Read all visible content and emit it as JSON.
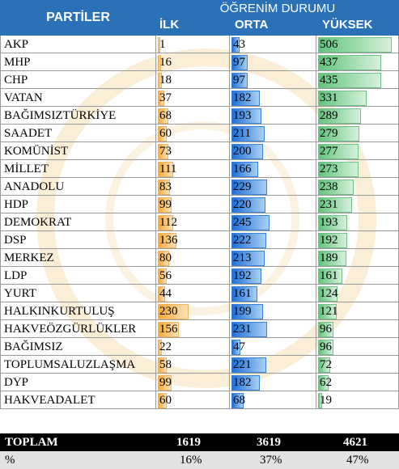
{
  "colors": {
    "header": "#2b71b8",
    "ilk_bar": "#f7a93a",
    "orta_bar": "#1e6fd8",
    "yuksek_bar": "#62c47a"
  },
  "header": {
    "partiler": "PARTİLER",
    "group": "ÖĞRENİM DURUMU",
    "col_ilk": "İLK",
    "col_orta": "ORTA",
    "col_yuksek": "YÜKSEK"
  },
  "chart_data": {
    "type": "table",
    "max_value": 560,
    "rows": [
      {
        "party": "AKP",
        "ilk": 1,
        "orta": 43,
        "yuksek": 506
      },
      {
        "party": "MHP",
        "ilk": 16,
        "orta": 97,
        "yuksek": 437
      },
      {
        "party": "CHP",
        "ilk": 18,
        "orta": 97,
        "yuksek": 435
      },
      {
        "party": "VATAN",
        "ilk": 37,
        "orta": 182,
        "yuksek": 331
      },
      {
        "party": "BAĞIMSIZTÜRKİYE",
        "ilk": 68,
        "orta": 193,
        "yuksek": 289
      },
      {
        "party": "SAADET",
        "ilk": 60,
        "orta": 211,
        "yuksek": 279
      },
      {
        "party": "KOMÜNİST",
        "ilk": 73,
        "orta": 200,
        "yuksek": 277
      },
      {
        "party": "MİLLET",
        "ilk": 111,
        "orta": 166,
        "yuksek": 273
      },
      {
        "party": "ANADOLU",
        "ilk": 83,
        "orta": 229,
        "yuksek": 238
      },
      {
        "party": "HDP",
        "ilk": 99,
        "orta": 220,
        "yuksek": 231
      },
      {
        "party": "DEMOKRAT",
        "ilk": 112,
        "orta": 245,
        "yuksek": 193
      },
      {
        "party": "DSP",
        "ilk": 136,
        "orta": 222,
        "yuksek": 192
      },
      {
        "party": "MERKEZ",
        "ilk": 80,
        "orta": 213,
        "yuksek": 189
      },
      {
        "party": "LDP",
        "ilk": 56,
        "orta": 192,
        "yuksek": 161
      },
      {
        "party": "YURT",
        "ilk": 44,
        "orta": 161,
        "yuksek": 124
      },
      {
        "party": "HALKINKURTULUŞ",
        "ilk": 230,
        "orta": 199,
        "yuksek": 121
      },
      {
        "party": "HAKVEÖZGÜRLÜKLER",
        "ilk": 156,
        "orta": 231,
        "yuksek": 96
      },
      {
        "party": "BAĞIMSIZ",
        "ilk": 22,
        "orta": 47,
        "yuksek": 96
      },
      {
        "party": "TOPLUMSALUZLAŞMA",
        "ilk": 58,
        "orta": 221,
        "yuksek": 72
      },
      {
        "party": "DYP",
        "ilk": 99,
        "orta": 182,
        "yuksek": 62
      },
      {
        "party": "HAKVEADALET",
        "ilk": 60,
        "orta": 68,
        "yuksek": 19
      }
    ],
    "total": {
      "label": "TOPLAM",
      "ilk": "1619",
      "orta": "3619",
      "yuksek": "4621"
    },
    "percent": {
      "label": "%",
      "ilk": "16%",
      "orta": "37%",
      "yuksek": "47%"
    }
  }
}
